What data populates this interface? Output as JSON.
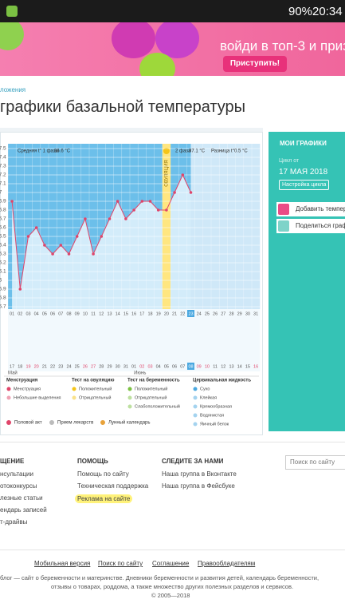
{
  "status_bar": {
    "battery": "90%",
    "time": "20:34"
  },
  "banner": {
    "text": "войди в топ-3 и приз",
    "button": "Приступить!"
  },
  "breadcrumb": "ложения",
  "title": "графики базальной температуры",
  "chart_data": {
    "type": "line",
    "color": "#e0456a",
    "stats": [
      "Средняя t° 1 фазы",
      "36.6 °С",
      "2 фаза",
      "37.1 °С",
      "Разница t°",
      "0.5 °С"
    ],
    "ovulation_label": "ОВУЛЯЦИЯ",
    "ovulation_index": 19,
    "highlight_index": 22,
    "x": [
      "01",
      "02",
      "03",
      "04",
      "05",
      "06",
      "07",
      "08",
      "09",
      "10",
      "11",
      "12",
      "13",
      "14",
      "15",
      "16",
      "17",
      "18",
      "19",
      "20",
      "21",
      "22",
      "23",
      "24",
      "25",
      "26",
      "27",
      "28",
      "29",
      "30",
      "31"
    ],
    "values": [
      36.9,
      35.9,
      36.5,
      36.6,
      36.4,
      36.3,
      36.4,
      36.3,
      36.5,
      36.7,
      36.3,
      36.5,
      36.7,
      36.9,
      36.7,
      36.8,
      36.9,
      36.9,
      36.8,
      36.8,
      37.0,
      37.2,
      37.0,
      null,
      null,
      null,
      null,
      null,
      null,
      null,
      null
    ],
    "dates": [
      "17",
      "18",
      "19",
      "20",
      "21",
      "22",
      "23",
      "24",
      "25",
      "26",
      "27",
      "28",
      "29",
      "30",
      "31",
      "01",
      "02",
      "03",
      "04",
      "05",
      "06",
      "07",
      "08",
      "09",
      "10",
      "11",
      "12",
      "13",
      "14",
      "15",
      "16"
    ],
    "weekend_indices": [
      2,
      3,
      9,
      10,
      16,
      17,
      23,
      24,
      30
    ],
    "months": [
      "Май",
      "Июнь"
    ],
    "ylim": [
      35.7,
      37.5
    ],
    "yticks": [
      37.5,
      37.4,
      37.3,
      37.2,
      37.1,
      37,
      36.9,
      36.8,
      36.7,
      36.6,
      36.5,
      36.4,
      36.3,
      36.2,
      36.1,
      36,
      35.9,
      35.8,
      35.7
    ],
    "grid": true
  },
  "legend": {
    "groups": [
      {
        "title": "Менструация",
        "items": [
          "Менструация",
          "Небольшие выделения"
        ]
      },
      {
        "title": "Тест на овуляцию",
        "items": [
          "Положительный",
          "Отрицательный"
        ]
      },
      {
        "title": "Тест на беременность",
        "items": [
          "Положительный",
          "Отрицательный",
          "Слабоположительный"
        ]
      },
      {
        "title": "Цервикальная жидкость",
        "items": [
          "Сухо",
          "Клейкая",
          "Кремообразная",
          "Водянистая",
          "Яичный белок"
        ]
      }
    ],
    "extras": [
      "Половой акт",
      "Прием лекарств",
      "Лунный календарь"
    ]
  },
  "sidebar": {
    "my_charts": "МОИ ГРАФИКИ",
    "cycle_from": "Цикл от",
    "cycle_date": "17 МАЯ 2018",
    "settings_button": "Настройка цикла",
    "actions": [
      "Добавить темпера",
      "Поделиться графи"
    ]
  },
  "footer": {
    "columns": [
      {
        "title": "ЩЕНИЕ",
        "links": [
          "нсультации",
          "отоконкурсы",
          "лезные статьи",
          "ендарь записей",
          "т-драйвы"
        ]
      },
      {
        "title": "ПОМОЩЬ",
        "links": [
          "Помощь по сайту",
          "Техническая поддержка",
          "Реклама на сайте"
        ]
      },
      {
        "title": "СЛЕДИТЕ ЗА НАМИ",
        "links": [
          "Наша группа в Вконтакте",
          "Наша группа в Фейсбуке"
        ]
      }
    ],
    "search_placeholder": "Поиск по сайту",
    "bottom_links": [
      "Мобильная версия",
      "Поиск по сайту",
      "Соглашение",
      "Правообладателям"
    ],
    "about": [
      "блог — сайт о беременности и материнстве. Дневники беременности и развития детей, календарь беременности,",
      "отзывы о товарах, роддома, а также множество других полезных разделов и сервисов.",
      "© 2005—2018"
    ]
  }
}
